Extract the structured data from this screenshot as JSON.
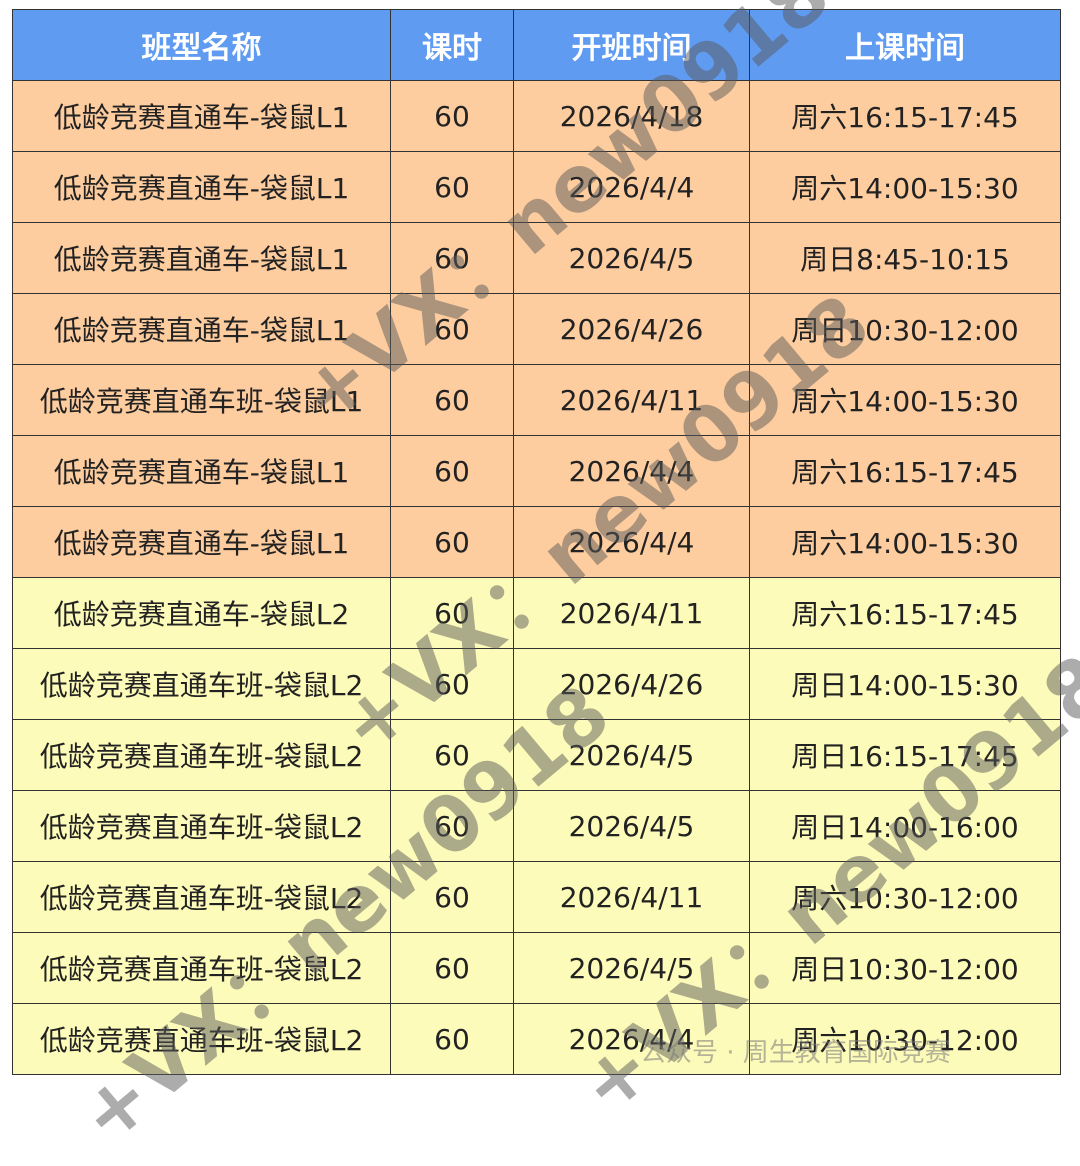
{
  "table": {
    "header": [
      "班型名称",
      "课时",
      "开班时间",
      "上课时间"
    ],
    "rows": [
      [
        "低龄竞赛直通车-袋鼠L1",
        60,
        "2026/4/18",
        "周六16:15-17:45"
      ],
      [
        "低龄竞赛直通车-袋鼠L1",
        60,
        "2026/4/4",
        "周六14:00-15:30"
      ],
      [
        "低龄竞赛直通车-袋鼠L1",
        60,
        "2026/4/5",
        "周日8:45-10:15"
      ],
      [
        "低龄竞赛直通车-袋鼠L1",
        60,
        "2026/4/26",
        "周日10:30-12:00"
      ],
      [
        "低龄竞赛直通车班-袋鼠L1",
        60,
        "2026/4/11",
        "周六14:00-15:30"
      ],
      [
        "低龄竞赛直通车-袋鼠L1",
        60,
        "2026/4/4",
        "周六16:15-17:45"
      ],
      [
        "低龄竞赛直通车-袋鼠L1",
        60,
        "2026/4/4",
        "周六14:00-15:30"
      ],
      [
        "低龄竞赛直通车-袋鼠L2",
        60,
        "2026/4/11",
        "周六16:15-17:45"
      ],
      [
        "低龄竞赛直通车班-袋鼠L2",
        60,
        "2026/4/26",
        "周日14:00-15:30"
      ],
      [
        "低龄竞赛直通车班-袋鼠L2",
        60,
        "2026/4/5",
        "周日16:15-17:45"
      ],
      [
        "低龄竞赛直通车班-袋鼠L2",
        60,
        "2026/4/5",
        "周日14:00-16:00"
      ],
      [
        "低龄竞赛直通车班-袋鼠L2",
        60,
        "2026/4/11",
        "周六10:30-12:00"
      ],
      [
        "低龄竞赛直通车班-袋鼠L2",
        60,
        "2026/4/5",
        "周日10:30-12:00"
      ],
      [
        "低龄竞赛直通车班-袋鼠L2",
        60,
        "2026/4/4",
        "周六10:30-12:00"
      ]
    ]
  },
  "watermark": "+VX：new0918",
  "footer": "公众号 · 周生教育国际竞赛"
}
